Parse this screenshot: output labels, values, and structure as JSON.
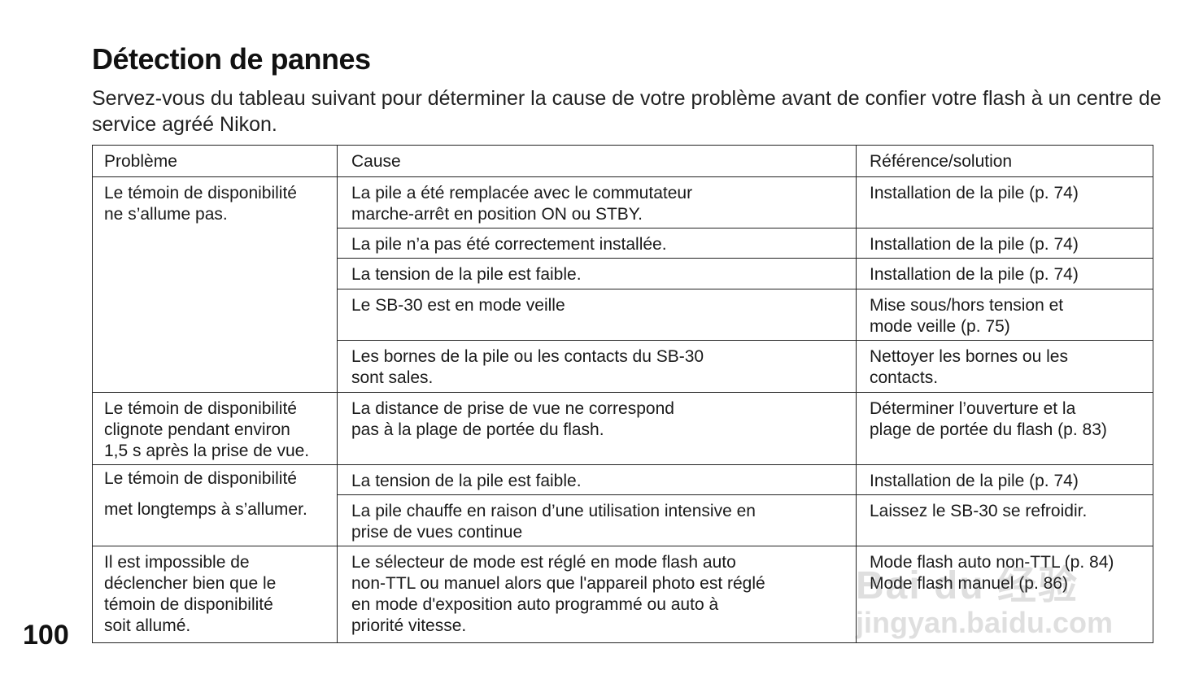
{
  "title": "Détection de pannes",
  "intro": "Servez-vous du tableau suivant pour déterminer la cause de votre problème avant de confier votre flash à un centre de service agréé Nikon.",
  "page_number": "100",
  "watermark": "Baidu 经验 jingyan.baidu.com",
  "table": {
    "headers": [
      "Problème",
      "Cause",
      "Référence/solution"
    ],
    "groups": [
      {
        "problem": "Le témoin de disponibilité\nne s’allume pas.",
        "rows": [
          {
            "cause": "La pile a été remplacée avec le commutateur\nmarche-arrêt en position ON ou STBY.",
            "ref": "Installation de la pile (p. 74)"
          },
          {
            "cause": "La pile n’a pas été correctement installée.",
            "ref": "Installation de la pile (p. 74)"
          },
          {
            "cause": "La tension de la pile est faible.",
            "ref": "Installation de la pile (p. 74)"
          },
          {
            "cause": "Le SB-30 est en mode veille",
            "ref": "Mise sous/hors tension et\nmode veille (p. 75)"
          },
          {
            "cause": "Les bornes de la pile ou les contacts du SB-30\nsont sales.",
            "ref": "Nettoyer les bornes ou les\ncontacts."
          }
        ]
      },
      {
        "problem": "Le témoin de disponibilité\nclignote pendant environ\n1,5 s après la prise de vue.",
        "rows": [
          {
            "cause": "La distance de prise de vue ne correspond\npas à la plage de portée du flash.",
            "ref": "Déterminer l’ouverture et la\nplage de portée du flash (p. 83)"
          }
        ]
      },
      {
        "problem": "Le témoin de disponibilité\n\nmet longtemps à s’allumer.",
        "rows": [
          {
            "cause": "La tension de la pile est faible.",
            "ref": "Installation de la pile (p. 74)"
          },
          {
            "cause": "La pile chauffe en raison d’une utilisation intensive en\nprise de vues continue",
            "ref": "Laissez le SB-30 se refroidir."
          }
        ]
      },
      {
        "problem": "Il est impossible de\ndéclencher bien que le\ntémoin de disponibilité\nsoit allumé.",
        "rows": [
          {
            "cause": "Le sélecteur de mode est réglé en mode flash auto\nnon-TTL ou manuel alors que l'appareil photo est réglé\nen mode d'exposition auto programmé ou auto à\npriorité vitesse.",
            "ref": "Mode flash auto non-TTL (p. 84)\nMode flash manuel (p. 86)"
          }
        ]
      }
    ]
  }
}
